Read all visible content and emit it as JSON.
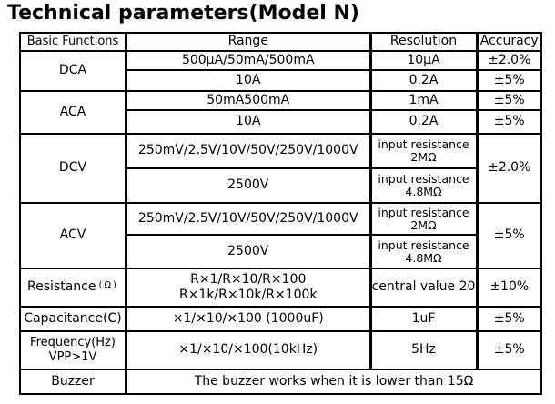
{
  "title": "Technical parameters(Model N)",
  "table": {
    "headers": [
      "Basic Functions",
      "Range",
      "Resolution",
      "Accuracy"
    ],
    "rows": {
      "dca": {
        "label": "DCA",
        "r1": {
          "range": "500μA/50mA/500mA",
          "resolution": "10μA",
          "accuracy": "±2.0%"
        },
        "r2": {
          "range": "10A",
          "resolution": "0.2A",
          "accuracy": "±5%"
        }
      },
      "aca": {
        "label": "ACA",
        "r1": {
          "range": "50mA500mA",
          "resolution": "1mA",
          "accuracy": "±5%"
        },
        "r2": {
          "range": "10A",
          "resolution": "0.2A",
          "accuracy": "±5%"
        }
      },
      "dcv": {
        "label": "DCV",
        "accuracy": "±2.0%",
        "r1": {
          "range": "250mV/2.5V/10V/50V/250V/1000V",
          "resolution_line1": "input resistance",
          "resolution_line2": "2MΩ"
        },
        "r2": {
          "range": "2500V",
          "resolution_line1": "input resistance",
          "resolution_line2": "4.8MΩ"
        }
      },
      "acv": {
        "label": "ACV",
        "accuracy": "±5%",
        "r1": {
          "range": "250mV/2.5V/10V/50V/250V/1000V",
          "resolution_line1": "input resistance",
          "resolution_line2": "2MΩ"
        },
        "r2": {
          "range": "2500V",
          "resolution_line1": "input resistance",
          "resolution_line2": "4.8MΩ"
        }
      },
      "resistance": {
        "label": "Resistance",
        "label_unit": "(Ω)",
        "range_line1": "R×1/R×10/R×100",
        "range_line2": "R×1k/R×10k/R×100k",
        "resolution": "central value 20",
        "accuracy": "±10%"
      },
      "capacitance": {
        "label": "Capacitance(C)",
        "range": "×1/×10/×100 (1000uF)",
        "resolution": "1uF",
        "accuracy": "±5%"
      },
      "frequency": {
        "label_line1": "Frequency(Hz)",
        "label_line2": "VPP>1V",
        "range": "×1/×10/×100(10kHz)",
        "resolution": "5Hz",
        "accuracy": "±5%"
      },
      "buzzer": {
        "label": "Buzzer",
        "note": "The buzzer works when it is lower than 15Ω"
      }
    }
  }
}
